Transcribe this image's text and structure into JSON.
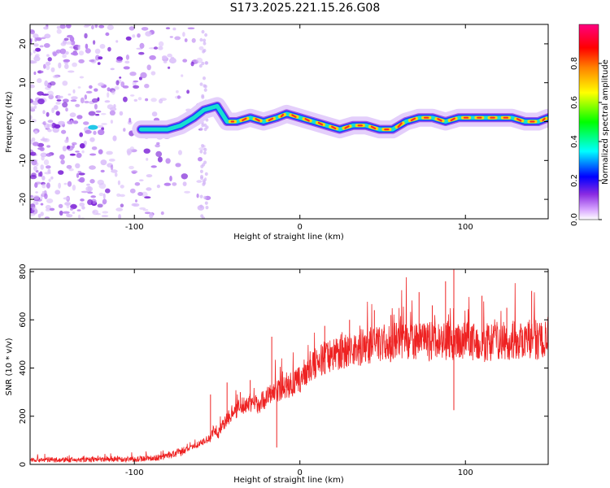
{
  "title": "S173.2025.221.15.26.G08",
  "chart_data": [
    {
      "type": "heatmap",
      "title": "S173.2025.221.15.26.G08",
      "xlabel": "Height of straight line (km)",
      "ylabel": "Frequency (Hz)",
      "xlim": [
        -163,
        150
      ],
      "ylim": [
        -25,
        25
      ],
      "x_ticks": [
        -100,
        0,
        100
      ],
      "y_ticks": [
        -20,
        -10,
        0,
        10,
        20
      ],
      "x_tick_labels": [
        "-100",
        "0",
        "100"
      ],
      "y_tick_labels": [
        "-20",
        "-10",
        "0",
        "10",
        "20"
      ],
      "colorbar": {
        "label": "Normalized spectral amplitude",
        "range": [
          0,
          1
        ],
        "ticks": [
          0.0,
          0.2,
          0.4,
          0.6,
          0.8
        ],
        "tick_labels": [
          "0.0",
          "0.2",
          "0.4",
          "0.6",
          "0.8"
        ],
        "colors": [
          "#ffffff",
          "#d9a8ff",
          "#8a2be2",
          "#0000ff",
          "#00ffff",
          "#00ff00",
          "#ffff00",
          "#ff8000",
          "#ff0000",
          "#ff00aa"
        ]
      },
      "ridge": {
        "x": [
          -96,
          -88,
          -80,
          -72,
          -64,
          -58,
          -50,
          -44,
          -38,
          -30,
          -22,
          -14,
          -8,
          0,
          8,
          16,
          24,
          32,
          40,
          48,
          56,
          64,
          72,
          80,
          88,
          96,
          104,
          112,
          120,
          128,
          136,
          144,
          150
        ],
        "y": [
          -2,
          -2,
          -2,
          -1,
          1,
          3,
          4,
          0,
          0,
          1,
          0,
          1,
          2,
          1,
          0,
          -1,
          -2,
          -1,
          -1,
          -2,
          -2,
          0,
          1,
          1,
          0,
          1,
          1,
          1,
          1,
          1,
          0,
          0,
          1
        ]
      },
      "noise_x_range": [
        -163,
        -55
      ],
      "hot_x_range": [
        -45,
        150
      ]
    },
    {
      "type": "line",
      "xlabel": "Height of straight line (km)",
      "ylabel": "SNR (10 * v/v)",
      "xlim": [
        -163,
        150
      ],
      "ylim": [
        0,
        810
      ],
      "x_ticks": [
        -100,
        0,
        100
      ],
      "y_ticks": [
        0,
        200,
        400,
        600,
        800
      ],
      "x_tick_labels": [
        "-100",
        "0",
        "100"
      ],
      "y_tick_labels": [
        "0",
        "200",
        "400",
        "600",
        "800"
      ],
      "series": [
        {
          "name": "SNR",
          "color": "#ee2222",
          "x": [
            -163,
            -140,
            -120,
            -100,
            -85,
            -75,
            -65,
            -58,
            -54,
            -52,
            -50,
            -45,
            -40,
            -35,
            -30,
            -25,
            -20,
            -15,
            -10,
            -5,
            0,
            5,
            10,
            20,
            30,
            40,
            50,
            60,
            70,
            80,
            90,
            95,
            100,
            110,
            120,
            130,
            140,
            150
          ],
          "y": [
            20,
            18,
            20,
            22,
            28,
            45,
            70,
            95,
            110,
            150,
            120,
            180,
            220,
            240,
            260,
            250,
            280,
            300,
            320,
            330,
            350,
            400,
            420,
            460,
            480,
            490,
            500,
            510,
            505,
            510,
            515,
            500,
            520,
            505,
            510,
            515,
            520,
            510
          ]
        }
      ],
      "spikes": [
        {
          "x": -54,
          "y": 290
        },
        {
          "x": -44,
          "y": 340
        },
        {
          "x": -36,
          "y": 300
        },
        {
          "x": -30,
          "y": 350
        },
        {
          "x": -17,
          "y": 530
        },
        {
          "x": 15,
          "y": 575
        },
        {
          "x": 30,
          "y": 600
        },
        {
          "x": 45,
          "y": 640
        },
        {
          "x": 55,
          "y": 620
        },
        {
          "x": 72,
          "y": 715
        },
        {
          "x": 80,
          "y": 660
        },
        {
          "x": 88,
          "y": 760
        },
        {
          "x": 93,
          "y": 810
        },
        {
          "x": 110,
          "y": 700
        },
        {
          "x": 125,
          "y": 650
        },
        {
          "x": 140,
          "y": 720
        }
      ],
      "dips": [
        {
          "x": -14,
          "y": 70
        },
        {
          "x": 93,
          "y": 225
        }
      ]
    }
  ]
}
